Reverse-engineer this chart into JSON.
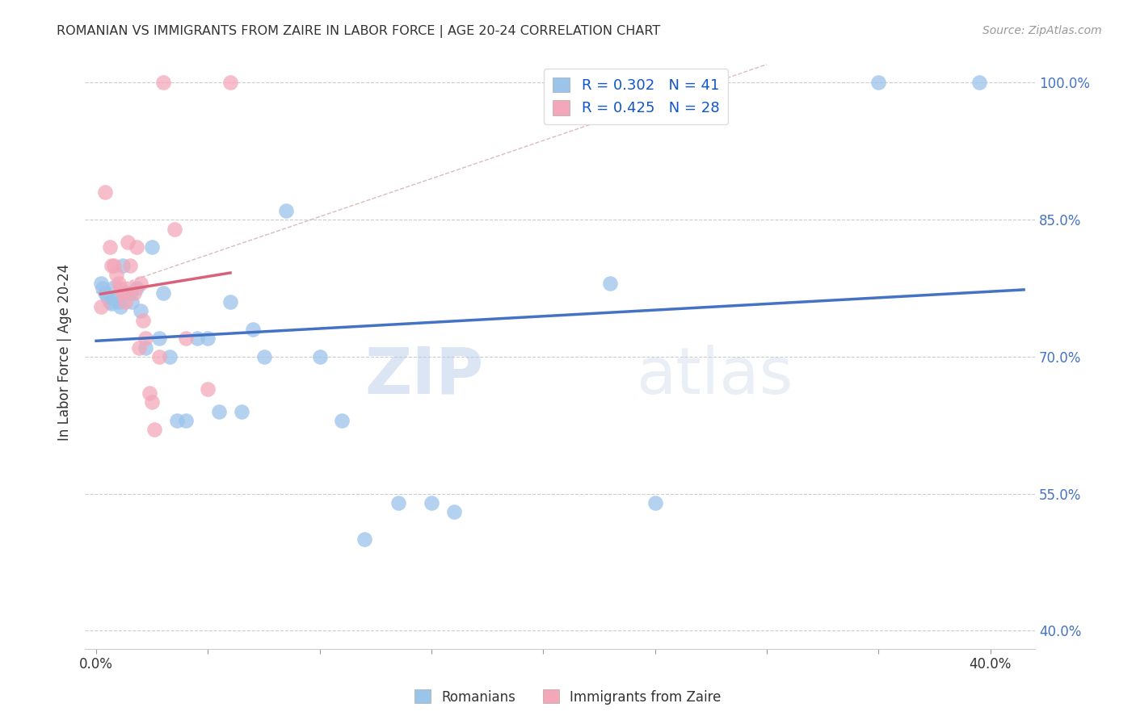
{
  "title": "ROMANIAN VS IMMIGRANTS FROM ZAIRE IN LABOR FORCE | AGE 20-24 CORRELATION CHART",
  "source": "Source: ZipAtlas.com",
  "ylabel": "In Labor Force | Age 20-24",
  "xlim": [
    -0.005,
    0.42
  ],
  "ylim": [
    0.38,
    1.03
  ],
  "yticks": [
    0.4,
    0.55,
    0.7,
    0.85,
    1.0
  ],
  "ytick_labels": [
    "40.0%",
    "55.0%",
    "70.0%",
    "85.0%",
    "100.0%"
  ],
  "xticks": [
    0.0,
    0.05,
    0.1,
    0.15,
    0.2,
    0.25,
    0.3,
    0.35,
    0.4
  ],
  "xtick_labels": [
    "0.0%",
    "",
    "",
    "",
    "",
    "",
    "",
    "",
    "40.0%"
  ],
  "romanians_x": [
    0.002,
    0.003,
    0.004,
    0.005,
    0.006,
    0.007,
    0.008,
    0.009,
    0.01,
    0.011,
    0.012,
    0.013,
    0.015,
    0.016,
    0.018,
    0.02,
    0.022,
    0.025,
    0.028,
    0.03,
    0.033,
    0.036,
    0.04,
    0.045,
    0.05,
    0.055,
    0.06,
    0.065,
    0.07,
    0.075,
    0.085,
    0.1,
    0.11,
    0.12,
    0.135,
    0.15,
    0.16,
    0.23,
    0.25,
    0.35,
    0.395
  ],
  "romanians_y": [
    0.78,
    0.775,
    0.77,
    0.765,
    0.76,
    0.758,
    0.776,
    0.765,
    0.76,
    0.755,
    0.8,
    0.77,
    0.77,
    0.76,
    0.775,
    0.75,
    0.71,
    0.82,
    0.72,
    0.77,
    0.7,
    0.63,
    0.63,
    0.72,
    0.72,
    0.64,
    0.76,
    0.64,
    0.73,
    0.7,
    0.86,
    0.7,
    0.63,
    0.5,
    0.54,
    0.54,
    0.53,
    0.78,
    0.54,
    1.0,
    1.0
  ],
  "zaire_x": [
    0.002,
    0.004,
    0.006,
    0.007,
    0.008,
    0.009,
    0.01,
    0.011,
    0.012,
    0.013,
    0.014,
    0.015,
    0.016,
    0.017,
    0.018,
    0.019,
    0.02,
    0.021,
    0.022,
    0.024,
    0.025,
    0.026,
    0.028,
    0.03,
    0.035,
    0.04,
    0.05,
    0.06
  ],
  "zaire_y": [
    0.755,
    0.88,
    0.82,
    0.8,
    0.8,
    0.79,
    0.78,
    0.775,
    0.77,
    0.76,
    0.825,
    0.8,
    0.775,
    0.77,
    0.82,
    0.71,
    0.78,
    0.74,
    0.72,
    0.66,
    0.65,
    0.62,
    0.7,
    1.0,
    0.84,
    0.72,
    0.665,
    1.0
  ],
  "r_romanians": 0.302,
  "n_romanians": 41,
  "r_zaire": 0.425,
  "n_zaire": 28,
  "color_romanians": "#9BC4EA",
  "color_zaire": "#F4A7B9",
  "line_color_romanians": "#4472C4",
  "line_color_zaire": "#D9627A",
  "line_color_diagonal": "#D4AAAA",
  "watermark_zip": "ZIP",
  "watermark_atlas": "atlas",
  "background_color": "#FFFFFF",
  "grid_color": "#CCCCCC",
  "tick_color_right": "#4472C4",
  "legend_label_color": "#1155CC"
}
